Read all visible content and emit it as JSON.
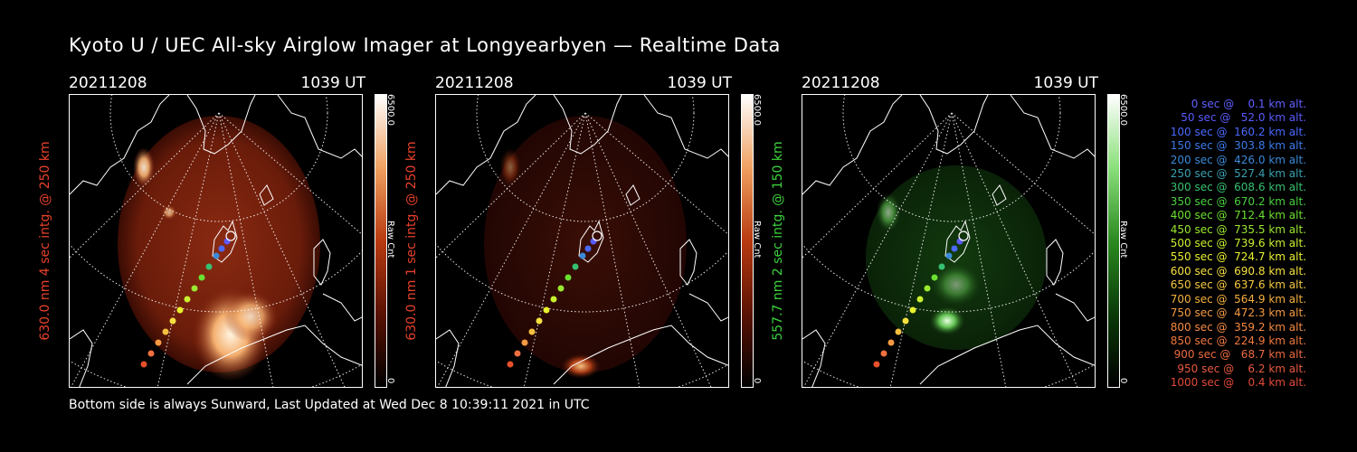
{
  "title": "Kyoto U / UEC All-sky Airglow Imager at Longyearbyen — Realtime Data",
  "footer": "Bottom side is always Sunward, Last Updated at Wed Dec  8 10:39:11 2021 in UTC",
  "panels": [
    {
      "date": "20211208",
      "time": "1039 UT",
      "ylabel": "630.0 nm 4 sec intg. @ 250 km",
      "ylabel_color": "#e8402a",
      "cbar_max": "6500.0",
      "cbar_min": "0",
      "cbar_unit": "Raw Cnt",
      "palette": "red"
    },
    {
      "date": "20211208",
      "time": "1039 UT",
      "ylabel": "630.0 nm 1 sec intg. @ 250 km",
      "ylabel_color": "#e8402a",
      "cbar_max": "6500.0",
      "cbar_min": "0",
      "cbar_unit": "Raw Cnt",
      "palette": "red"
    },
    {
      "date": "20211208",
      "time": "1039 UT",
      "ylabel": "557.7 nm 2 sec intg. @ 150 km",
      "ylabel_color": "#3cd23c",
      "cbar_max": "6500.0",
      "cbar_min": "0",
      "cbar_unit": "Raw Cnt",
      "palette": "green"
    }
  ],
  "legend": [
    {
      "text": "0 sec @    0.1 km alt.",
      "color": "#6060ff"
    },
    {
      "text": "50 sec @   52.0 km alt.",
      "color": "#5a5aff"
    },
    {
      "text": "100 sec @  160.2 km alt.",
      "color": "#4a6aff"
    },
    {
      "text": "150 sec @  303.8 km alt.",
      "color": "#3a7ae8"
    },
    {
      "text": "200 sec @  426.0 km alt.",
      "color": "#3a8ad8"
    },
    {
      "text": "250 sec @  527.4 km alt.",
      "color": "#3aa0b0"
    },
    {
      "text": "300 sec @  608.6 km alt.",
      "color": "#36c070"
    },
    {
      "text": "350 sec @  670.2 km alt.",
      "color": "#4ad040"
    },
    {
      "text": "400 sec @  712.4 km alt.",
      "color": "#6ae030"
    },
    {
      "text": "450 sec @  735.5 km alt.",
      "color": "#9ae830"
    },
    {
      "text": "500 sec @  739.6 km alt.",
      "color": "#c8f030"
    },
    {
      "text": "550 sec @  724.7 km alt.",
      "color": "#e8f030"
    },
    {
      "text": "600 sec @  690.8 km alt.",
      "color": "#f5e040"
    },
    {
      "text": "650 sec @  637.6 km alt.",
      "color": "#f5c840"
    },
    {
      "text": "700 sec @  564.9 km alt.",
      "color": "#f5b040"
    },
    {
      "text": "750 sec @  472.3 km alt.",
      "color": "#f59a40"
    },
    {
      "text": "800 sec @  359.2 km alt.",
      "color": "#f58a40"
    },
    {
      "text": "850 sec @  224.9 km alt.",
      "color": "#f07840"
    },
    {
      "text": "900 sec @   68.7 km alt.",
      "color": "#ec6a40"
    },
    {
      "text": "950 sec @    6.2 km alt.",
      "color": "#e85a40"
    },
    {
      "text": "1000 sec @    0.4 km alt.",
      "color": "#e44a3a"
    }
  ]
}
